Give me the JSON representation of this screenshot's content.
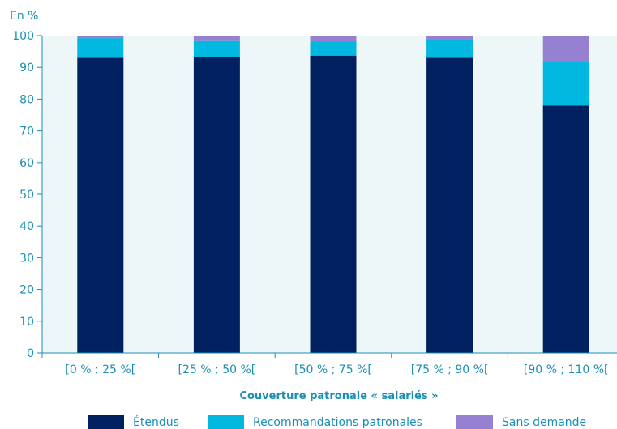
{
  "chart_data": {
    "type": "bar",
    "stacked": true,
    "unit_label": "En %",
    "xlabel": "Couverture patronale « salariés »",
    "ylabel": "",
    "ylim": [
      0,
      100
    ],
    "yticks": [
      0,
      10,
      20,
      30,
      40,
      50,
      60,
      70,
      80,
      90,
      100
    ],
    "grid": false,
    "legend_position": "bottom",
    "categories": [
      "[0 % ; 25 %[",
      "[25 % ; 50 %[",
      "[50 % ; 75 %[",
      "[75 % ; 90 %[",
      "[90 % ; 110 %["
    ],
    "series": [
      {
        "name": "Étendus",
        "color": "#002060",
        "values": [
          93.0,
          93.3,
          93.7,
          93.0,
          78.0
        ]
      },
      {
        "name": "Recommandations patronales",
        "color": "#00b8e0",
        "values": [
          6.2,
          5.0,
          4.5,
          5.7,
          13.7
        ]
      },
      {
        "name": "Sans demande",
        "color": "#9680d2",
        "values": [
          0.8,
          1.7,
          1.8,
          1.3,
          8.3
        ]
      }
    ]
  }
}
